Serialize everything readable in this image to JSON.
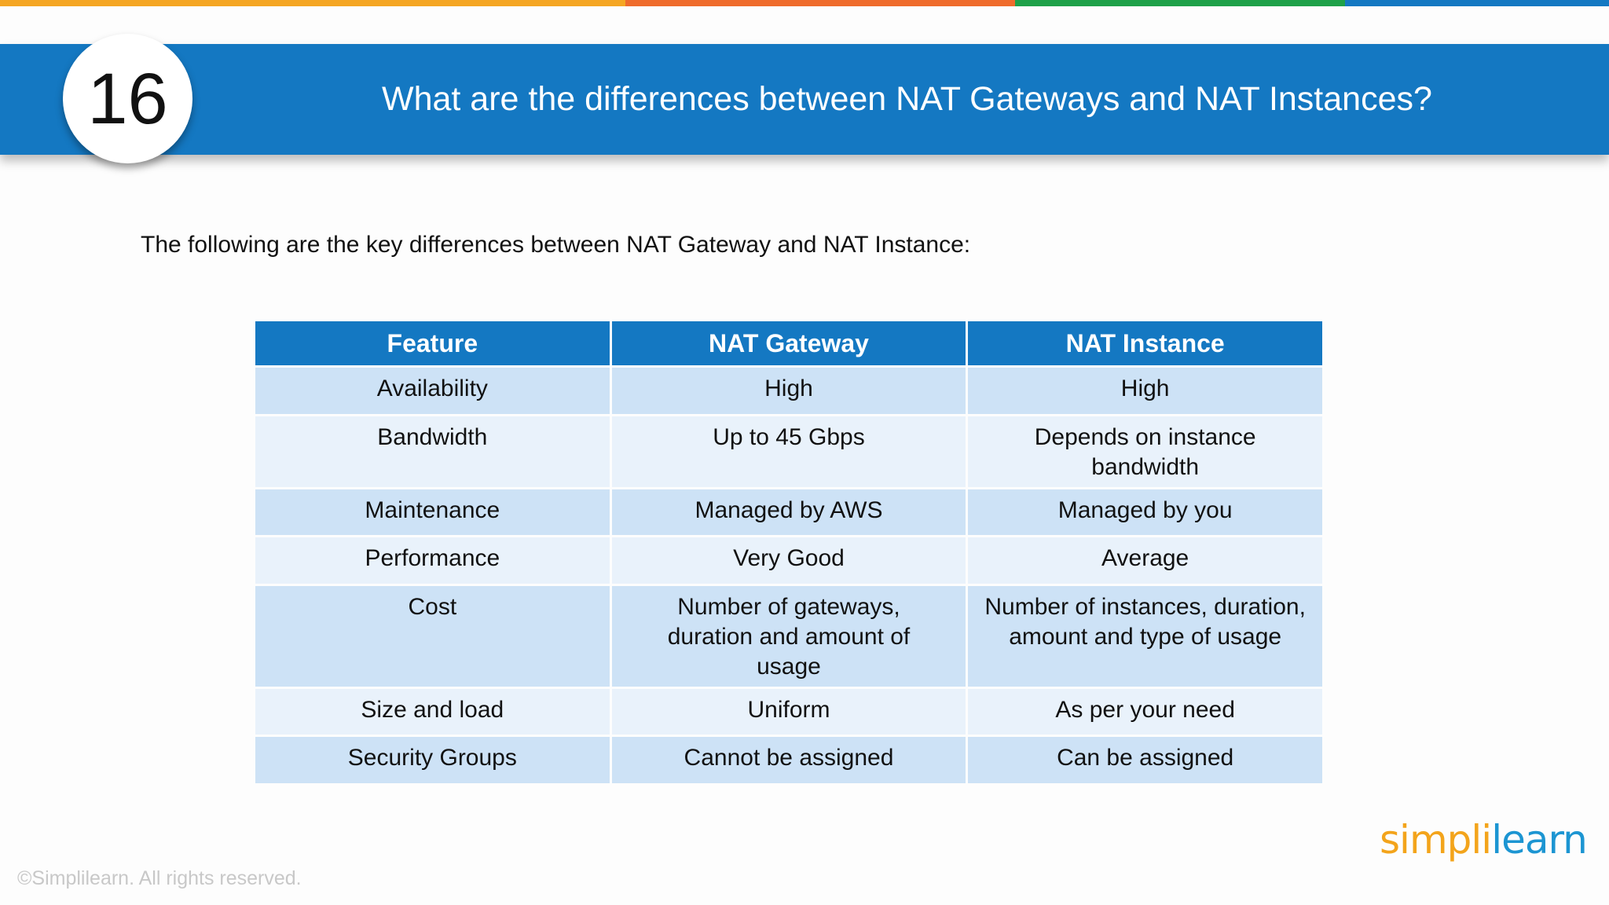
{
  "colors": {
    "strip": [
      "#f5a623",
      "#ef6b2c",
      "#1ea149",
      "#1478c2"
    ],
    "header": "#1478c2",
    "row_odd": "#cde2f6",
    "row_even": "#e9f2fb"
  },
  "slide": {
    "number": "16",
    "title": "What are the differences between NAT Gateways and NAT Instances?",
    "intro": "The following are the key differences between NAT Gateway and NAT Instance:"
  },
  "table": {
    "headers": [
      "Feature",
      "NAT Gateway",
      "NAT Instance"
    ],
    "rows": [
      [
        "Availability",
        "High",
        "High"
      ],
      [
        "Bandwidth",
        "Up to 45 Gbps",
        "Depends on instance bandwidth"
      ],
      [
        "Maintenance",
        "Managed by AWS",
        "Managed by you"
      ],
      [
        "Performance",
        "Very Good",
        "Average"
      ],
      [
        "Cost",
        "Number of gateways, duration and amount of usage",
        "Number of instances, duration, amount and type of usage"
      ],
      [
        "Size and load",
        "Uniform",
        "As per your need"
      ],
      [
        "Security Groups",
        "Cannot be assigned",
        "Can be assigned"
      ]
    ]
  },
  "footer": {
    "copyright": "©Simplilearn. All rights reserved.",
    "logo_part1": "simpl",
    "logo_part2": "i",
    "logo_part3": "learn"
  }
}
